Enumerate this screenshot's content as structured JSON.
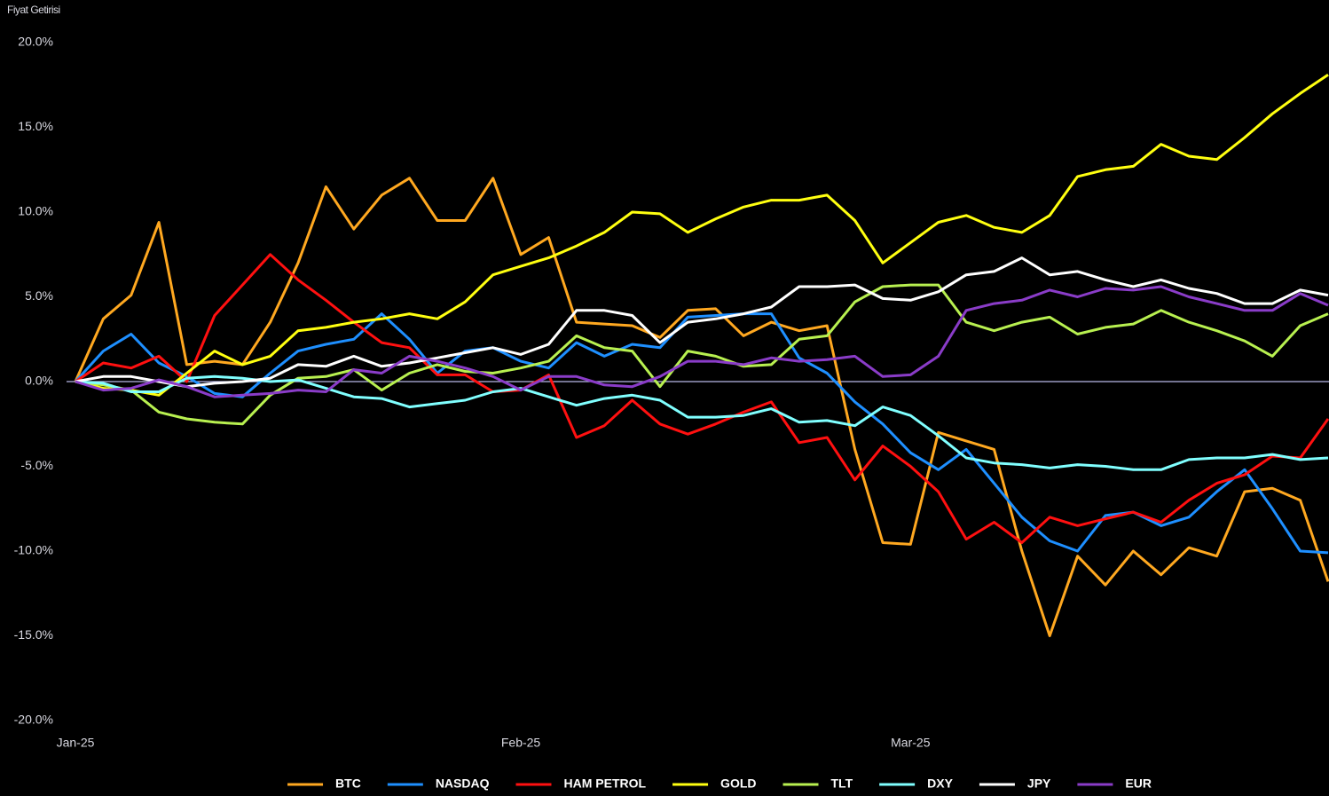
{
  "chart_data": {
    "type": "line",
    "ylabel": "Fiyat Getirisi",
    "categories": [
      "Jan-25",
      null,
      null,
      null,
      null,
      null,
      null,
      null,
      null,
      null,
      null,
      null,
      null,
      null,
      null,
      null,
      "Feb-25",
      null,
      null,
      null,
      null,
      null,
      null,
      null,
      null,
      null,
      null,
      null,
      null,
      null,
      "Mar-25",
      null,
      null,
      null,
      null,
      null,
      null,
      null,
      null,
      null,
      null,
      null,
      null,
      null,
      null,
      null
    ],
    "ylim": [
      -20,
      20
    ],
    "yticks": [
      {
        "value": 20,
        "label": "20.0%"
      },
      {
        "value": 15,
        "label": "15.0%"
      },
      {
        "value": 10,
        "label": "10.0%"
      },
      {
        "value": 5,
        "label": "5.0%"
      },
      {
        "value": 0,
        "label": "0.0%"
      },
      {
        "value": -5,
        "label": "-5.0%"
      },
      {
        "value": -10,
        "label": "-10.0%"
      },
      {
        "value": -15,
        "label": "-15.0%"
      },
      {
        "value": -20,
        "label": "-20.0%"
      }
    ],
    "grid": false,
    "legend": "bottom",
    "series": [
      {
        "name": "BTC",
        "color": "#ffa820",
        "values": [
          0,
          3.7,
          5.1,
          9.4,
          1,
          1.2,
          1.0,
          3.5,
          7,
          11.5,
          9,
          11,
          12,
          9.5,
          9.5,
          12,
          7.5,
          8.5,
          3.5,
          3.4,
          3.3,
          2.6,
          4.2,
          4.3,
          2.7,
          3.5,
          3,
          3.3,
          -4,
          -9.5,
          -9.6,
          -3,
          -3.5,
          -4,
          -10,
          -15,
          -10.3,
          -12,
          -10,
          -11.4,
          -9.8,
          -10.3,
          -6.5,
          -6.3,
          -7,
          -11.8
        ]
      },
      {
        "name": "NASDAQ",
        "color": "#1e8fff",
        "values": [
          0,
          1.8,
          2.8,
          1.1,
          0.3,
          -0.7,
          -0.9,
          0.5,
          1.8,
          2.2,
          2.5,
          4.0,
          2.5,
          0.5,
          1.8,
          2,
          1.2,
          0.8,
          2.3,
          1.5,
          2.2,
          2.0,
          3.8,
          3.9,
          4.0,
          4.0,
          1.4,
          0.5,
          -1.2,
          -2.5,
          -4.2,
          -5.2,
          -4,
          -6,
          -8,
          -9.4,
          -10,
          -7.9,
          -7.7,
          -8.5,
          -8,
          -6.5,
          -5.2,
          -7.5,
          -10,
          -10.1
        ]
      },
      {
        "name": "HAM PETROL",
        "color": "#ff1010",
        "values": [
          0,
          1.1,
          0.8,
          1.5,
          0,
          3.9,
          5.7,
          7.5,
          6.0,
          4.8,
          3.5,
          2.3,
          2.0,
          0.4,
          0.4,
          -0.6,
          -0.5,
          0.4,
          -3.3,
          -2.6,
          -1.1,
          -2.5,
          -3.1,
          -2.5,
          -1.8,
          -1.2,
          -3.6,
          -3.3,
          -5.8,
          -3.8,
          -5,
          -6.5,
          -9.3,
          -8.3,
          -9.5,
          -8.0,
          -8.5,
          -8.1,
          -7.7,
          -8.3,
          -7,
          -6,
          -5.5,
          -4.4,
          -4.5,
          -2.2
        ]
      },
      {
        "name": "GOLD",
        "color": "#ffff10",
        "values": [
          0,
          -0.4,
          -0.5,
          -0.8,
          0.5,
          1.8,
          1.0,
          1.5,
          3.0,
          3.2,
          3.5,
          3.7,
          4.0,
          3.7,
          4.7,
          6.3,
          6.8,
          7.3,
          8.0,
          8.8,
          10.0,
          9.9,
          8.8,
          9.6,
          10.3,
          10.7,
          10.7,
          11.0,
          9.5,
          7.0,
          8.2,
          9.4,
          9.8,
          9.1,
          8.8,
          9.8,
          12.1,
          12.5,
          12.7,
          14.0,
          13.3,
          13.1,
          14.4,
          15.8,
          17.0,
          18.1
        ]
      },
      {
        "name": "TLT",
        "color": "#b8f050",
        "values": [
          0,
          -0.2,
          -0.5,
          -1.8,
          -2.2,
          -2.4,
          -2.5,
          -0.8,
          0.2,
          0.3,
          0.7,
          -0.5,
          0.5,
          1.0,
          0.6,
          0.5,
          0.8,
          1.2,
          2.7,
          2.0,
          1.8,
          -0.3,
          1.8,
          1.5,
          0.9,
          1.0,
          2.5,
          2.7,
          4.7,
          5.6,
          5.7,
          5.7,
          3.5,
          3.0,
          3.5,
          3.8,
          2.8,
          3.2,
          3.4,
          4.2,
          3.5,
          3.0,
          2.4,
          1.5,
          3.3,
          4.0
        ]
      },
      {
        "name": "DXY",
        "color": "#80ffff",
        "values": [
          0,
          -0.1,
          -0.6,
          -0.6,
          0.2,
          0.3,
          0.2,
          0,
          0.1,
          -0.4,
          -0.9,
          -1.0,
          -1.5,
          -1.3,
          -1.1,
          -0.6,
          -0.4,
          -0.9,
          -1.4,
          -1.0,
          -0.8,
          -1.1,
          -2.1,
          -2.1,
          -2.0,
          -1.6,
          -2.4,
          -2.3,
          -2.6,
          -1.5,
          -2.0,
          -3.2,
          -4.5,
          -4.8,
          -4.9,
          -5.1,
          -4.9,
          -5.0,
          -5.2,
          -5.2,
          -4.6,
          -4.5,
          -4.5,
          -4.3,
          -4.6,
          -4.5
        ]
      },
      {
        "name": "JPY",
        "color": "#ffffff",
        "values": [
          0,
          0.3,
          0.3,
          0,
          -0.3,
          -0.1,
          0,
          0.2,
          1.0,
          0.9,
          1.5,
          0.9,
          1.1,
          1.4,
          1.7,
          2.0,
          1.6,
          2.2,
          4.2,
          4.2,
          3.9,
          2.3,
          3.5,
          3.7,
          4.0,
          4.4,
          5.6,
          5.6,
          5.7,
          4.9,
          4.8,
          5.3,
          6.3,
          6.5,
          7.3,
          6.3,
          6.5,
          6.0,
          5.6,
          6.0,
          5.5,
          5.2,
          4.6,
          4.6,
          5.4,
          5.1
        ]
      },
      {
        "name": "EUR",
        "color": "#8a3cc8",
        "values": [
          0,
          -0.5,
          -0.4,
          0.1,
          -0.3,
          -0.9,
          -0.8,
          -0.7,
          -0.5,
          -0.6,
          0.7,
          0.5,
          1.5,
          1.2,
          0.8,
          0.3,
          -0.5,
          0.3,
          0.3,
          -0.2,
          -0.3,
          0.3,
          1.2,
          1.2,
          1.0,
          1.4,
          1.2,
          1.3,
          1.5,
          0.3,
          0.4,
          1.5,
          4.2,
          4.6,
          4.8,
          5.4,
          5.0,
          5.5,
          5.4,
          5.6,
          5.0,
          4.6,
          4.2,
          4.2,
          5.2,
          4.5
        ]
      }
    ]
  }
}
